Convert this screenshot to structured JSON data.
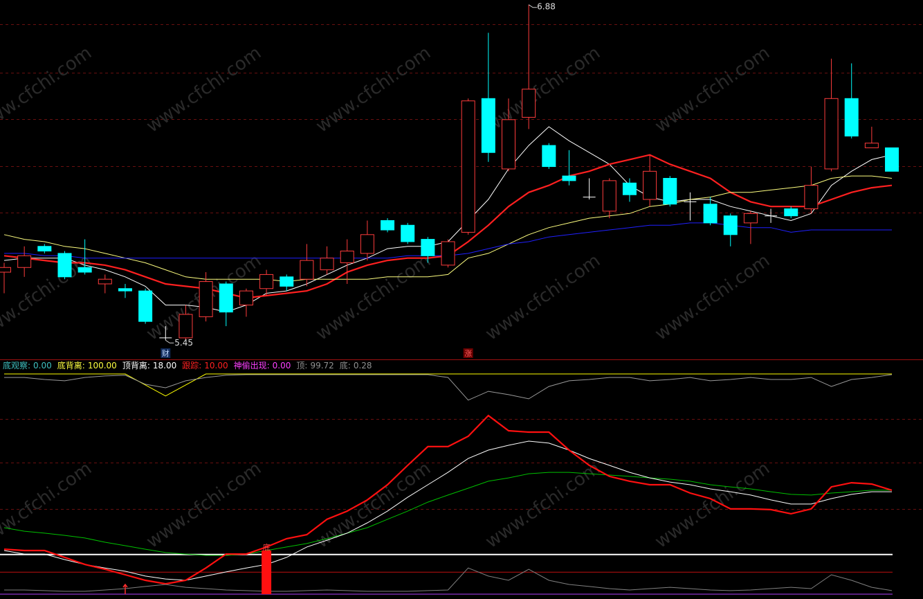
{
  "watermark": "www.cfchi.com",
  "chart_data": [
    {
      "type": "candlestick",
      "categories": [
        null,
        null,
        null,
        null,
        null,
        null,
        null,
        null,
        null,
        null,
        null,
        null,
        null,
        null,
        null,
        null,
        null,
        null,
        null,
        null,
        null,
        null,
        null,
        null,
        null,
        null,
        null,
        null,
        null,
        null,
        null,
        null,
        null,
        null,
        null,
        null,
        null,
        null,
        null,
        null,
        null,
        null,
        null,
        null,
        null
      ],
      "open": [
        5.74,
        5.76,
        5.85,
        5.82,
        5.76,
        5.69,
        5.67,
        5.66,
        5.46,
        5.46,
        5.55,
        5.69,
        5.6,
        5.67,
        5.72,
        5.71,
        5.75,
        5.78,
        5.82,
        5.96,
        5.94,
        5.88,
        5.77,
        5.91,
        6.48,
        6.18,
        6.4,
        6.28,
        6.15,
        6.06,
        6.0,
        6.12,
        6.05,
        6.14,
        6.04,
        6.03,
        5.98,
        5.95,
        5.98,
        6.01,
        6.01,
        6.18,
        6.48,
        6.27,
        6.27
      ],
      "close": [
        5.76,
        5.81,
        5.83,
        5.72,
        5.74,
        5.71,
        5.66,
        5.53,
        5.46,
        5.56,
        5.7,
        5.57,
        5.66,
        5.73,
        5.68,
        5.79,
        5.8,
        5.83,
        5.9,
        5.92,
        5.87,
        5.81,
        5.87,
        6.47,
        6.25,
        6.39,
        6.52,
        6.19,
        6.13,
        6.06,
        6.13,
        6.07,
        6.17,
        6.03,
        6.04,
        5.95,
        5.9,
        5.99,
        5.98,
        5.98,
        6.11,
        6.48,
        6.32,
        6.29,
        6.17
      ],
      "high": [
        5.78,
        5.85,
        5.86,
        5.83,
        5.88,
        5.73,
        5.69,
        5.67,
        5.51,
        5.6,
        5.74,
        5.7,
        5.67,
        5.75,
        5.73,
        5.86,
        5.85,
        5.88,
        5.96,
        5.97,
        5.95,
        5.89,
        5.88,
        6.48,
        6.76,
        6.48,
        6.88,
        6.29,
        6.26,
        6.14,
        6.14,
        6.14,
        6.24,
        6.15,
        6.08,
        6.06,
        5.99,
        6.0,
        6.01,
        6.02,
        6.19,
        6.65,
        6.63,
        6.36,
        6.27
      ],
      "low": [
        5.65,
        5.72,
        5.82,
        5.71,
        5.73,
        5.65,
        5.63,
        5.52,
        5.45,
        5.45,
        5.53,
        5.51,
        5.55,
        5.64,
        5.66,
        5.68,
        5.73,
        5.69,
        5.79,
        5.91,
        5.86,
        5.78,
        5.76,
        5.9,
        6.21,
        6.17,
        6.35,
        6.18,
        6.11,
        6.05,
        5.97,
        6.04,
        6.02,
        6.02,
        5.96,
        5.94,
        5.85,
        5.86,
        5.95,
        5.97,
        5.99,
        6.17,
        6.31,
        6.27,
        6.17
      ],
      "up_color": "#ff3c3c",
      "down_color": "#00ffff",
      "flat_color": "#ffffff",
      "series": [
        {
          "color": "#ffffff",
          "values": [
            5.79,
            5.8,
            5.8,
            5.8,
            5.77,
            5.75,
            5.72,
            5.68,
            5.6,
            5.6,
            5.59,
            5.57,
            5.6,
            5.65,
            5.66,
            5.69,
            5.73,
            5.77,
            5.8,
            5.84,
            5.85,
            5.85,
            5.87,
            5.96,
            6.05,
            6.18,
            6.28,
            6.36,
            6.3,
            6.25,
            6.2,
            6.11,
            6.06,
            6.04,
            6.05,
            6.05,
            6.02,
            6.0,
            5.98,
            5.96,
            5.99,
            6.11,
            6.17,
            6.22,
            6.24
          ]
        },
        {
          "color": "#ff2020",
          "values": [
            5.81,
            5.8,
            5.79,
            5.78,
            5.78,
            5.77,
            5.75,
            5.72,
            5.69,
            5.68,
            5.67,
            5.65,
            5.63,
            5.64,
            5.65,
            5.66,
            5.69,
            5.74,
            5.77,
            5.79,
            5.8,
            5.8,
            5.81,
            5.87,
            5.94,
            6.02,
            6.08,
            6.11,
            6.15,
            6.17,
            6.2,
            6.22,
            6.24,
            6.2,
            6.17,
            6.14,
            6.08,
            6.04,
            6.02,
            6.02,
            6.02,
            6.05,
            6.08,
            6.1,
            6.11
          ]
        },
        {
          "color": "#ffff80",
          "values": [
            5.9,
            5.88,
            5.87,
            5.85,
            5.84,
            5.82,
            5.8,
            5.78,
            5.75,
            5.72,
            5.71,
            5.71,
            5.71,
            5.71,
            5.7,
            5.71,
            5.71,
            5.71,
            5.71,
            5.72,
            5.72,
            5.72,
            5.73,
            5.8,
            5.82,
            5.86,
            5.9,
            5.93,
            5.95,
            5.97,
            5.98,
            5.99,
            6.02,
            6.03,
            6.05,
            6.06,
            6.08,
            6.08,
            6.09,
            6.1,
            6.11,
            6.14,
            6.15,
            6.15,
            6.14
          ]
        },
        {
          "color": "#2020ff",
          "values": [
            5.82,
            5.82,
            5.81,
            5.81,
            5.8,
            5.8,
            5.8,
            5.8,
            5.8,
            5.8,
            5.8,
            5.8,
            5.8,
            5.8,
            5.8,
            5.8,
            5.8,
            5.8,
            5.8,
            5.8,
            5.81,
            5.81,
            5.81,
            5.82,
            5.84,
            5.86,
            5.87,
            5.89,
            5.9,
            5.91,
            5.92,
            5.93,
            5.94,
            5.94,
            5.95,
            5.95,
            5.94,
            5.93,
            5.93,
            5.91,
            5.92,
            5.92,
            5.92,
            5.92,
            5.92
          ]
        }
      ],
      "markers": [
        null,
        null,
        null,
        null,
        null,
        null,
        null,
        null,
        "财",
        null,
        null,
        null,
        null,
        null,
        null,
        null,
        null,
        null,
        null,
        null,
        null,
        null,
        null,
        "涨",
        null,
        null,
        null,
        null,
        null,
        null,
        null,
        null,
        null,
        null,
        null,
        null,
        null,
        null,
        null,
        null,
        null,
        null,
        null,
        null,
        null
      ],
      "ylim": [
        5.38,
        6.9
      ]
    },
    {
      "type": "line",
      "legend": [
        {
          "name": "底观察:",
          "value": "0.00",
          "color": "#40c0c0"
        },
        {
          "name": "底背离:",
          "value": "100.00",
          "color": "#ffff40"
        },
        {
          "name": "顶背离:",
          "value": "18.00",
          "color": "#ffffff"
        },
        {
          "name": "跟踪:",
          "value": "10.00",
          "color": "#ff2020"
        },
        {
          "name": "神偷出现:",
          "value": "0.00",
          "color": "#ff40ff"
        },
        {
          "name": "顶:",
          "value": "99.72",
          "color": "#909090"
        },
        {
          "name": "底:",
          "value": "0.28",
          "color": "#909090"
        }
      ],
      "series": [
        {
          "color": "#ffff00",
          "values": [
            100,
            100,
            100,
            100,
            100,
            100,
            100,
            95,
            90,
            95,
            100,
            100,
            100,
            100,
            100,
            100,
            100,
            100,
            100,
            100,
            100,
            100,
            100,
            100,
            100,
            100,
            100,
            100,
            100,
            100,
            100,
            100,
            100,
            100,
            100,
            100,
            100,
            100,
            100,
            100,
            100,
            100,
            100,
            100,
            100
          ]
        },
        {
          "color": "#9a9a9a",
          "values": [
            98.4,
            98.4,
            97.5,
            96.9,
            98.4,
            99.1,
            99.4,
            95.3,
            93.7,
            96.9,
            98.4,
            99.4,
            99.7,
            99.7,
            99.7,
            99.7,
            99.7,
            99.7,
            99.7,
            99.7,
            99.7,
            99.7,
            98.4,
            88.1,
            92.1,
            90.6,
            88.7,
            94.3,
            96.9,
            97.5,
            98.4,
            98.4,
            96.9,
            97.5,
            98.4,
            96.9,
            97.5,
            98.4,
            97.5,
            97.5,
            98.4,
            94.3,
            97.5,
            98.4,
            99.7
          ]
        },
        {
          "color": "#00c000",
          "values": [
            30.2,
            28.6,
            27.7,
            26.7,
            25.5,
            23.6,
            22.0,
            20.4,
            18.9,
            18.2,
            17.6,
            17.6,
            18.2,
            19.8,
            21.4,
            23.0,
            25.2,
            27.7,
            30.2,
            34.0,
            37.7,
            41.8,
            45.0,
            48.1,
            51.3,
            52.8,
            54.7,
            55.3,
            55.3,
            54.7,
            54.1,
            53.5,
            52.8,
            52.2,
            51.3,
            49.7,
            48.7,
            47.8,
            46.5,
            45.3,
            45.0,
            45.9,
            46.5,
            47.2,
            47.2
          ]
        },
        {
          "color": "#ffffff",
          "values": [
            19.8,
            18.2,
            18.2,
            15.7,
            13.5,
            11.9,
            10.4,
            8.2,
            6.9,
            6.3,
            8.2,
            10.1,
            11.9,
            13.5,
            16.7,
            21.4,
            24.5,
            27.7,
            32.4,
            37.7,
            44.0,
            49.7,
            55.3,
            61.6,
            65.4,
            67.6,
            69.5,
            68.6,
            65.4,
            61.6,
            58.5,
            55.3,
            52.8,
            50.9,
            49.7,
            47.8,
            46.5,
            45.0,
            42.8,
            40.9,
            40.9,
            43.4,
            45.3,
            46.5,
            46.5
          ]
        },
        {
          "color": "#ff1010",
          "values": [
            20.4,
            19.8,
            19.8,
            16.7,
            13.5,
            11.3,
            8.8,
            6.3,
            4.7,
            6.3,
            11.9,
            18.2,
            18.2,
            21.4,
            25.2,
            27.0,
            34.0,
            37.7,
            42.8,
            49.7,
            58.5,
            67.0,
            67.0,
            71.7,
            81.1,
            74.2,
            73.6,
            73.6,
            65.4,
            58.5,
            53.5,
            51.3,
            49.7,
            49.7,
            45.9,
            43.4,
            38.7,
            38.7,
            38.4,
            36.5,
            38.7,
            48.7,
            50.6,
            50.0,
            47.2
          ]
        },
        {
          "color": "#808080",
          "values": [
            1.9,
            1.9,
            1.6,
            1.3,
            1.3,
            1.9,
            2.5,
            3.5,
            4.4,
            3.1,
            2.5,
            1.9,
            1.6,
            1.3,
            1.3,
            1.6,
            1.9,
            1.6,
            1.3,
            1.3,
            1.3,
            1.6,
            1.9,
            11.9,
            8.2,
            6.3,
            11.3,
            6.3,
            4.4,
            3.5,
            2.5,
            1.9,
            2.5,
            3.1,
            2.5,
            1.9,
            1.6,
            1.9,
            2.5,
            3.1,
            2.5,
            8.8,
            6.3,
            3.1,
            1.6
          ]
        }
      ],
      "levels": [
        {
          "value": 18,
          "color": "#ffffff"
        },
        {
          "value": 10,
          "color": "#c01010"
        },
        {
          "value": 0,
          "color": "#b040ff"
        }
      ],
      "signal_bars": [
        null,
        null,
        null,
        null,
        null,
        null,
        null,
        null,
        null,
        null,
        null,
        null,
        null,
        19.8,
        null,
        null,
        null,
        null,
        null,
        null,
        null,
        null,
        null,
        null,
        null,
        null,
        null,
        null,
        null,
        null,
        null,
        null,
        null,
        null,
        null,
        null,
        null,
        null,
        null,
        null,
        null,
        null,
        null,
        null,
        null
      ],
      "bar_labels": [
        null,
        null,
        null,
        null,
        null,
        null,
        null,
        null,
        null,
        null,
        null,
        null,
        null,
        "底",
        null,
        null,
        null,
        null,
        null,
        null,
        null,
        null,
        null,
        null,
        null,
        null,
        null,
        null,
        null,
        null,
        null,
        null,
        null,
        null,
        null,
        null,
        null,
        null,
        null,
        null,
        null,
        null,
        null,
        null,
        null
      ],
      "arrows": [
        null,
        null,
        null,
        null,
        null,
        null,
        4.4,
        null,
        null,
        null,
        null,
        null,
        null,
        null,
        null,
        null,
        null,
        null,
        null,
        null,
        null,
        null,
        null,
        null,
        null,
        null,
        null,
        null,
        null,
        null,
        null,
        null,
        null,
        null,
        null,
        null,
        null,
        null,
        null,
        null,
        null,
        null,
        null,
        null,
        null
      ],
      "ylim": [
        0,
        100
      ]
    }
  ]
}
